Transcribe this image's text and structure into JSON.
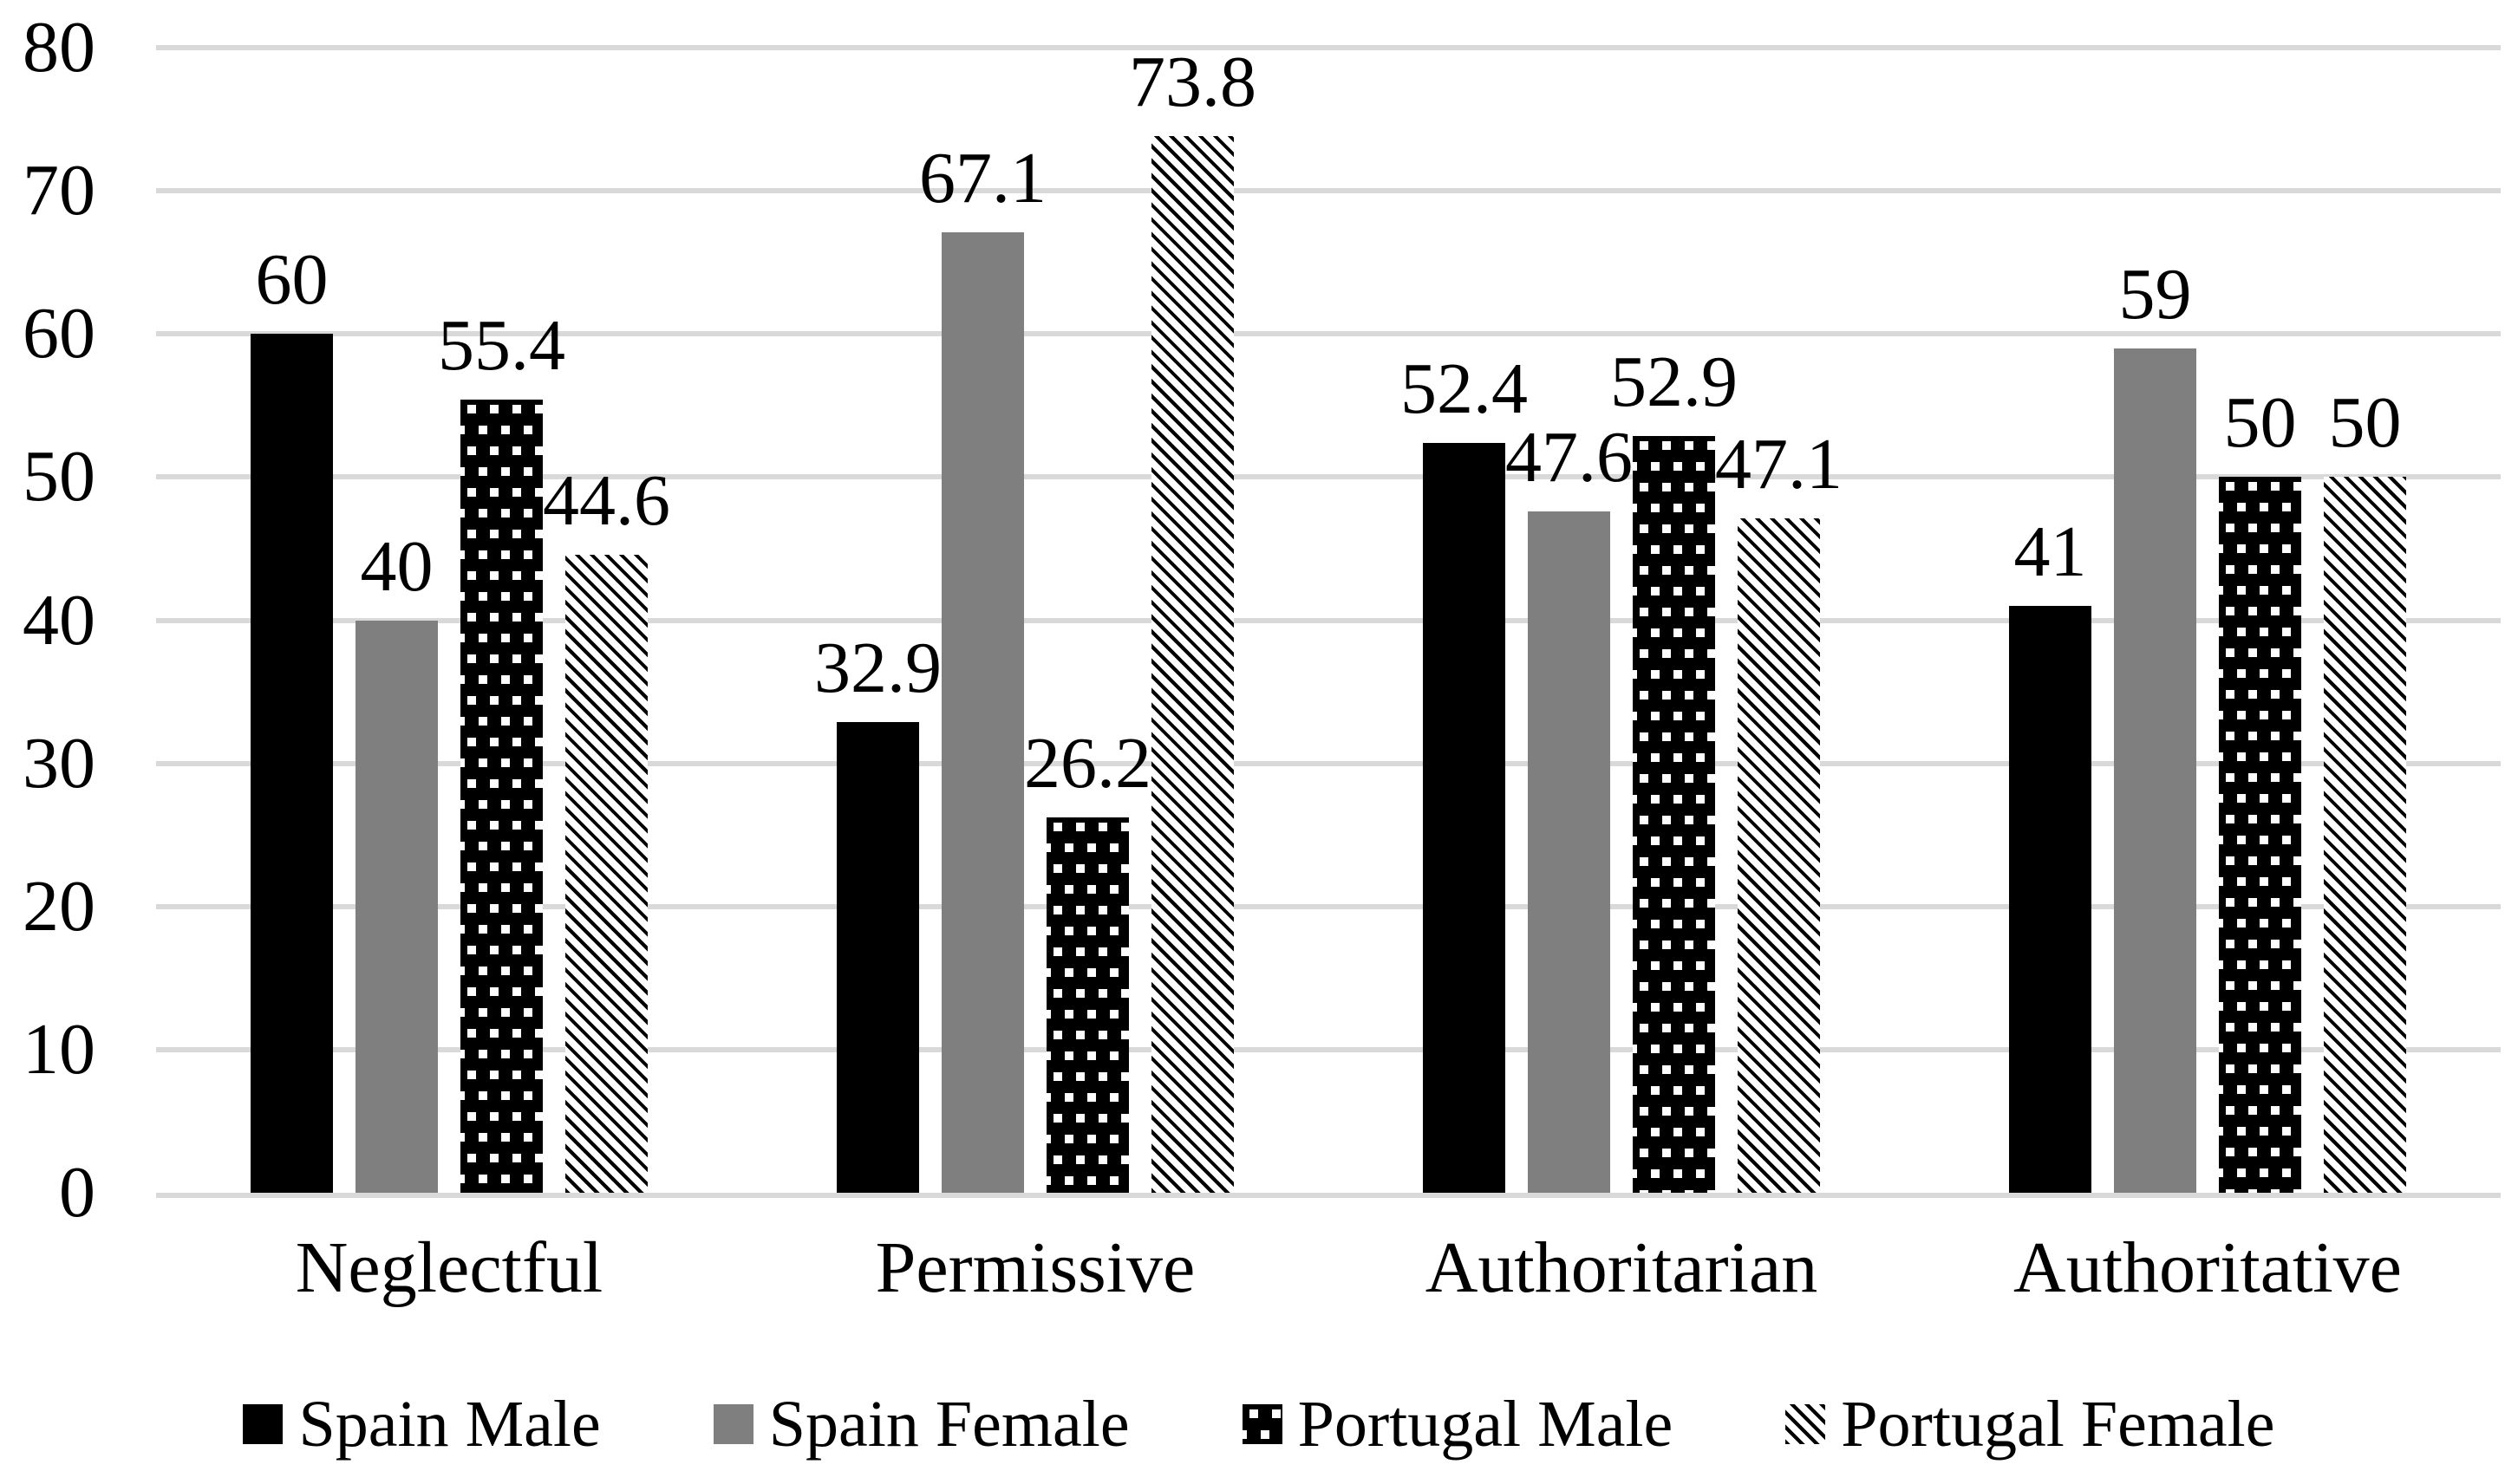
{
  "chart_data": {
    "type": "bar",
    "title": "",
    "xlabel": "",
    "ylabel": "",
    "categories": [
      "Neglectful",
      "Permissive",
      "Authoritarian",
      "Authoritative"
    ],
    "series": [
      {
        "name": "Spain Male",
        "pattern": "solid-black",
        "values": [
          60,
          32.9,
          52.4,
          41
        ]
      },
      {
        "name": "Spain Female",
        "pattern": "solid-gray",
        "values": [
          40,
          67.1,
          47.6,
          59
        ]
      },
      {
        "name": "Portugal Male",
        "pattern": "black-white-dots",
        "values": [
          55.4,
          26.2,
          52.9,
          50
        ]
      },
      {
        "name": "Portugal Female",
        "pattern": "diagonal-stripes",
        "values": [
          44.6,
          73.8,
          47.1,
          50
        ]
      }
    ],
    "value_labels": [
      [
        "60",
        "32.9",
        "52.4",
        "41"
      ],
      [
        "40",
        "67.1",
        "47.6",
        "59"
      ],
      [
        "55.4",
        "26.2",
        "52.9",
        "50"
      ],
      [
        "44.6",
        "73.8",
        "47.1",
        "50"
      ]
    ],
    "ylim": [
      0,
      80
    ],
    "yticks": [
      0,
      10,
      20,
      30,
      40,
      50,
      60,
      70,
      80
    ],
    "grid": true,
    "legend_position": "bottom"
  },
  "colors": {
    "spain_male": "#000000",
    "spain_female": "#7f7f7f",
    "pattern_ink": "#000000",
    "pattern_paper": "#ffffff",
    "gridline": "#d9d9d9",
    "text": "#000000",
    "background": "#ffffff"
  }
}
